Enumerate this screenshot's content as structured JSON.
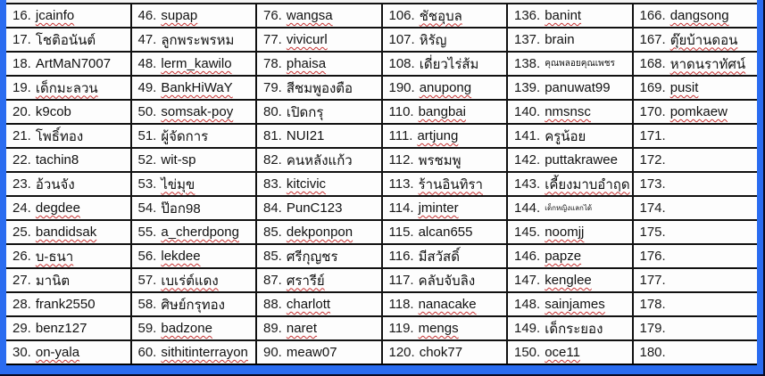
{
  "frame": {
    "border_color": "#2a6cf0",
    "outer_background": "#0a0a22",
    "table_background": "#fdfdfd",
    "grid_line_color": "#111111",
    "spellcheck_underline_color": "#c63333"
  },
  "table": {
    "columns": [
      {
        "entries": [
          {
            "num": "16",
            "name": "jcainfo",
            "squiggle": true
          },
          {
            "num": "17",
            "name": "โชติอนันต์",
            "squiggle": false
          },
          {
            "num": "18",
            "name": "ArtMaN7007",
            "squiggle": false
          },
          {
            "num": "19",
            "name": "เด็กมะลวน",
            "squiggle": true
          },
          {
            "num": "20",
            "name": "k9cob",
            "squiggle": false
          },
          {
            "num": "21",
            "name": "โพธิ์ทอง",
            "squiggle": false
          },
          {
            "num": "22",
            "name": "tachin8",
            "squiggle": false
          },
          {
            "num": "23",
            "name": "อ้วนจัง",
            "squiggle": false
          },
          {
            "num": "24",
            "name": "degdee",
            "squiggle": true
          },
          {
            "num": "25",
            "name": "bandidsak",
            "squiggle": true
          },
          {
            "num": "26",
            "name": "บ-ธนา",
            "squiggle": true
          },
          {
            "num": "27",
            "name": "มานิต",
            "squiggle": false
          },
          {
            "num": "28",
            "name": "frank2550",
            "squiggle": false
          },
          {
            "num": "29",
            "name": "benz127",
            "squiggle": false
          },
          {
            "num": "30",
            "name": "on-yala",
            "squiggle": true
          }
        ]
      },
      {
        "entries": [
          {
            "num": "46",
            "name": "supap",
            "squiggle": true
          },
          {
            "num": "47",
            "name": "ลูกพระพรหม",
            "squiggle": false
          },
          {
            "num": "48",
            "name": "lerm_kawilo",
            "squiggle": true
          },
          {
            "num": "49",
            "name": "BankHiWaY",
            "squiggle": true
          },
          {
            "num": "50",
            "name": "somsak-poy",
            "squiggle": true
          },
          {
            "num": "51",
            "name": "ผู้จัดการ",
            "squiggle": false
          },
          {
            "num": "52",
            "name": "wit-sp",
            "squiggle": false
          },
          {
            "num": "53",
            "name": "ไข่มุข",
            "squiggle": true
          },
          {
            "num": "54",
            "name": "ป๊อก98",
            "squiggle": false
          },
          {
            "num": "55",
            "name": "a_cherdpong",
            "squiggle": true
          },
          {
            "num": "56",
            "name": "lekdee",
            "squiggle": true
          },
          {
            "num": "57",
            "name": "เบเร่ต์แดง",
            "squiggle": true
          },
          {
            "num": "58",
            "name": "ศิษย์กรุทอง",
            "squiggle": false
          },
          {
            "num": "59",
            "name": "badzone",
            "squiggle": true
          },
          {
            "num": "60",
            "name": "sithitinterrayon",
            "squiggle": true
          }
        ]
      },
      {
        "entries": [
          {
            "num": "76",
            "name": "wangsa",
            "squiggle": true
          },
          {
            "num": "77",
            "name": "vivicurl",
            "squiggle": true
          },
          {
            "num": "78",
            "name": "phaisa",
            "squiggle": true
          },
          {
            "num": "79",
            "name": "สีชมพูองตือ",
            "squiggle": false
          },
          {
            "num": "80",
            "name": "เปิดกรุ",
            "squiggle": false
          },
          {
            "num": "81",
            "name": "NUI21",
            "squiggle": false
          },
          {
            "num": "82",
            "name": "คนหลังแก้ว",
            "squiggle": false
          },
          {
            "num": "83",
            "name": "kitcivic",
            "squiggle": true
          },
          {
            "num": "84",
            "name": "PunC123",
            "squiggle": false
          },
          {
            "num": "85",
            "name": "dekponpon",
            "squiggle": true
          },
          {
            "num": "85",
            "name": "ศรีกุญชร",
            "squiggle": false
          },
          {
            "num": "87",
            "name": "ศรารีย์",
            "squiggle": true
          },
          {
            "num": "88",
            "name": "charlott",
            "squiggle": true
          },
          {
            "num": "89",
            "name": "naret",
            "squiggle": true
          },
          {
            "num": "90",
            "name": "meaw07",
            "squiggle": false
          }
        ]
      },
      {
        "entries": [
          {
            "num": "106",
            "name": "ชัชอุบล",
            "squiggle": true
          },
          {
            "num": "107",
            "name": "หิรัญ",
            "squiggle": false
          },
          {
            "num": "108",
            "name": "เดี่ยวไร่ส้ม",
            "squiggle": false
          },
          {
            "num": "190",
            "name": "anupong",
            "squiggle": true
          },
          {
            "num": "110",
            "name": "bangbai",
            "squiggle": true
          },
          {
            "num": "111",
            "name": "artjung",
            "squiggle": true
          },
          {
            "num": "112",
            "name": "พรชมพู",
            "squiggle": false
          },
          {
            "num": "113",
            "name": "ร้านอินทิรา",
            "squiggle": true
          },
          {
            "num": "114",
            "name": "jminter",
            "squiggle": true
          },
          {
            "num": "115",
            "name": "alcan655",
            "squiggle": false
          },
          {
            "num": "116",
            "name": "มีสวัสดิ์",
            "squiggle": false
          },
          {
            "num": "117",
            "name": "คลับจับลิง",
            "squiggle": false
          },
          {
            "num": "118",
            "name": "nanacake",
            "squiggle": true
          },
          {
            "num": "119",
            "name": "mengs",
            "squiggle": true
          },
          {
            "num": "120",
            "name": "chok77",
            "squiggle": false
          }
        ]
      },
      {
        "entries": [
          {
            "num": "136",
            "name": "banint",
            "squiggle": true
          },
          {
            "num": "137",
            "name": "brain",
            "squiggle": false
          },
          {
            "num": "138",
            "name": "คุณพลอยคุณเพชร",
            "squiggle": false,
            "size": "s"
          },
          {
            "num": "139",
            "name": "panuwat99",
            "squiggle": false
          },
          {
            "num": "140",
            "name": "nmsnsc",
            "squiggle": true
          },
          {
            "num": "141",
            "name": "ครูน้อย",
            "squiggle": false
          },
          {
            "num": "142",
            "name": "puttakrawee",
            "squiggle": false
          },
          {
            "num": "143",
            "name": "เคี้ยงมาบอำฤด",
            "squiggle": true
          },
          {
            "num": "144",
            "name": "เด็กหญิงแลกได้",
            "squiggle": false,
            "size": "xs"
          },
          {
            "num": "145",
            "name": "noomjj",
            "squiggle": true
          },
          {
            "num": "146",
            "name": "papze",
            "squiggle": true
          },
          {
            "num": "147",
            "name": "kenglee",
            "squiggle": true
          },
          {
            "num": "148",
            "name": "sainjames",
            "squiggle": true
          },
          {
            "num": "149",
            "name": "เด็กระยอง",
            "squiggle": false
          },
          {
            "num": "150",
            "name": "oce11",
            "squiggle": true
          }
        ]
      },
      {
        "entries": [
          {
            "num": "166",
            "name": "dangsong",
            "squiggle": true
          },
          {
            "num": "167",
            "name": "ตุ๊ยบ้านดอน",
            "squiggle": true
          },
          {
            "num": "168",
            "name": "หาดนราทัศน์",
            "squiggle": true
          },
          {
            "num": "169",
            "name": "pusit",
            "squiggle": true
          },
          {
            "num": "170",
            "name": "pomkaew",
            "squiggle": true
          },
          {
            "num": "171",
            "name": "",
            "squiggle": false
          },
          {
            "num": "172",
            "name": "",
            "squiggle": false
          },
          {
            "num": "173",
            "name": "",
            "squiggle": false
          },
          {
            "num": "174",
            "name": "",
            "squiggle": false
          },
          {
            "num": "175",
            "name": "",
            "squiggle": false
          },
          {
            "num": "176",
            "name": "",
            "squiggle": false
          },
          {
            "num": "177",
            "name": "",
            "squiggle": false
          },
          {
            "num": "178",
            "name": "",
            "squiggle": false
          },
          {
            "num": "179",
            "name": "",
            "squiggle": false
          },
          {
            "num": "180",
            "name": "",
            "squiggle": false
          }
        ]
      }
    ]
  }
}
